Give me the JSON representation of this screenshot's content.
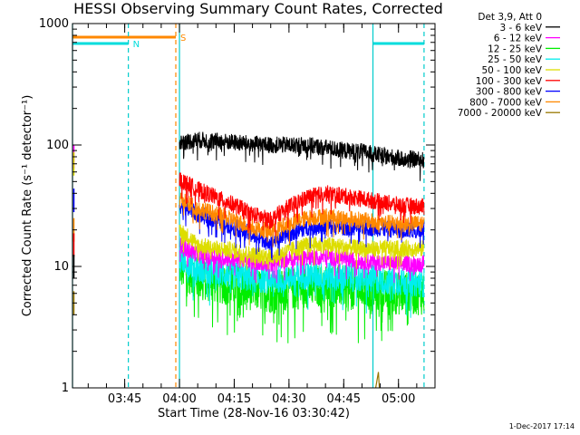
{
  "page": {
    "title": "HESSI Observing Summary Count Rates, Corrected",
    "credit": "1-Dec-2017 17:14"
  },
  "chart_data": {
    "type": "line",
    "title": "HESSI Observing Summary Count Rates, Corrected",
    "xlabel": "Start Time (28-Nov-16 03:30:42)",
    "ylabel": "Corrected Count Rate (s⁻¹ detector⁻¹)",
    "yscale": "log",
    "ylim": [
      1,
      1000
    ],
    "yticks": [
      1,
      10,
      100,
      1000
    ],
    "xlim": [
      "03:30:42",
      "05:10:00"
    ],
    "xticks": [
      "03:45",
      "04:00",
      "04:15",
      "04:30",
      "04:45",
      "05:00"
    ],
    "legend": {
      "position": "right",
      "header": "Det 3,9, Att 0",
      "entries": [
        {
          "label": "3 - 6 keV",
          "color": "#000000"
        },
        {
          "label": "6 - 12 keV",
          "color": "#ff00ff"
        },
        {
          "label": "12 - 25 keV",
          "color": "#00ee00"
        },
        {
          "label": "25 - 50 keV",
          "color": "#00eeee"
        },
        {
          "label": "50 - 100 keV",
          "color": "#dddd00"
        },
        {
          "label": "100 - 300 keV",
          "color": "#ff0000"
        },
        {
          "label": "300 - 800 keV",
          "color": "#0000ff"
        },
        {
          "label": "800 - 7000 keV",
          "color": "#ff8800"
        },
        {
          "label": "7000 - 20000 keV",
          "color": "#997700"
        }
      ]
    },
    "flags": [
      {
        "label": "N",
        "color": "#00dddd",
        "start": "03:30:42",
        "end": "03:46:00"
      },
      {
        "label": "S",
        "color": "#ff8800",
        "start": "03:30:42",
        "end": "03:59:00"
      },
      {
        "label": "",
        "color": "#00dddd",
        "start": "04:53:00",
        "end": "05:07:00"
      }
    ],
    "vlines": [
      {
        "time": "03:46:00",
        "color": "#00cccc",
        "style": "dashed"
      },
      {
        "time": "03:59:00",
        "color": "#ff8800",
        "style": "dashed"
      },
      {
        "time": "05:07:00",
        "color": "#00cccc",
        "style": "dashed"
      },
      {
        "time": "03:30:42",
        "color": "#00cccc",
        "style": "solid"
      },
      {
        "time": "04:00:00",
        "color": "#00cccc",
        "style": "solid"
      },
      {
        "time": "04:53:00",
        "color": "#00cccc",
        "style": "solid"
      }
    ],
    "data_start": "04:00:00",
    "data_end": "05:07:00",
    "series": [
      {
        "name": "7000 - 20000 keV",
        "color": "#997700",
        "x": [
          "04:00",
          "04:10",
          "04:20",
          "04:30",
          "04:40",
          "04:50",
          "05:00",
          "05:07"
        ],
        "y": [
          1,
          1,
          1,
          1,
          1,
          1,
          1,
          1
        ]
      },
      {
        "name": "12 - 25 keV",
        "color": "#00ee00",
        "x": [
          "04:00",
          "04:05",
          "04:10",
          "04:15",
          "04:20",
          "04:25",
          "04:30",
          "04:35",
          "04:40",
          "04:45",
          "04:50",
          "04:55",
          "05:00",
          "05:07"
        ],
        "y": [
          10,
          8,
          7.5,
          7,
          6.5,
          6.2,
          6.5,
          6.8,
          7,
          6.8,
          6.5,
          6.3,
          6,
          6
        ]
      },
      {
        "name": "25 - 50 keV",
        "color": "#00eeee",
        "x": [
          "04:00",
          "04:05",
          "04:10",
          "04:15",
          "04:20",
          "04:25",
          "04:30",
          "04:35",
          "04:40",
          "04:45",
          "04:50",
          "04:55",
          "05:00",
          "05:07"
        ],
        "y": [
          12,
          9.5,
          9,
          8.5,
          8,
          7.8,
          8.2,
          8.5,
          8.4,
          8.2,
          8,
          7.7,
          7.5,
          7.3
        ]
      },
      {
        "name": "6 - 12 keV",
        "color": "#ff00ff",
        "x": [
          "04:00",
          "04:05",
          "04:10",
          "04:15",
          "04:20",
          "04:25",
          "04:30",
          "04:35",
          "04:40",
          "04:45",
          "04:50",
          "04:55",
          "05:00",
          "05:07"
        ],
        "y": [
          15,
          12.5,
          12,
          11.5,
          11,
          10.5,
          11.5,
          12,
          12,
          11.5,
          11,
          10.8,
          10.5,
          10.5
        ]
      },
      {
        "name": "50 - 100 keV",
        "color": "#dddd00",
        "x": [
          "04:00",
          "04:05",
          "04:10",
          "04:15",
          "04:20",
          "04:25",
          "04:30",
          "04:35",
          "04:40",
          "04:45",
          "04:50",
          "04:55",
          "05:00",
          "05:07"
        ],
        "y": [
          20,
          15,
          14,
          13.5,
          12.5,
          12,
          13.5,
          15,
          15,
          14.5,
          14,
          14,
          14,
          14
        ]
      },
      {
        "name": "300 - 800 keV",
        "color": "#0000ff",
        "x": [
          "04:00",
          "04:05",
          "04:10",
          "04:15",
          "04:20",
          "04:25",
          "04:30",
          "04:35",
          "04:40",
          "04:45",
          "04:50",
          "04:55",
          "05:00",
          "05:07"
        ],
        "y": [
          32,
          27,
          24,
          21,
          18,
          16,
          18.5,
          21,
          21.5,
          21,
          21,
          20.5,
          20,
          20
        ]
      },
      {
        "name": "800 - 7000 keV",
        "color": "#ff8800",
        "x": [
          "04:00",
          "04:05",
          "04:10",
          "04:15",
          "04:20",
          "04:25",
          "04:30",
          "04:35",
          "04:40",
          "04:45",
          "04:50",
          "04:55",
          "05:00",
          "05:07"
        ],
        "y": [
          36,
          30,
          27,
          24,
          21,
          19.5,
          22.5,
          25,
          26,
          25,
          24,
          23,
          22.5,
          22.5
        ]
      },
      {
        "name": "100 - 300 keV",
        "color": "#ff0000",
        "x": [
          "04:00",
          "04:05",
          "04:10",
          "04:15",
          "04:20",
          "04:25",
          "04:30",
          "04:35",
          "04:40",
          "04:45",
          "04:50",
          "04:55",
          "05:00",
          "05:07"
        ],
        "y": [
          52,
          43,
          37,
          32,
          27,
          24,
          31,
          37,
          40,
          38,
          36,
          34,
          32,
          31
        ]
      },
      {
        "name": "3 - 6 keV",
        "color": "#000000",
        "x": [
          "04:00",
          "04:05",
          "04:10",
          "04:15",
          "04:20",
          "04:25",
          "04:30",
          "04:35",
          "04:40",
          "04:45",
          "04:50",
          "04:55",
          "05:00",
          "05:07"
        ],
        "y": [
          105,
          110,
          108,
          105,
          102,
          100,
          100,
          100,
          95,
          90,
          88,
          82,
          78,
          75
        ]
      }
    ]
  }
}
